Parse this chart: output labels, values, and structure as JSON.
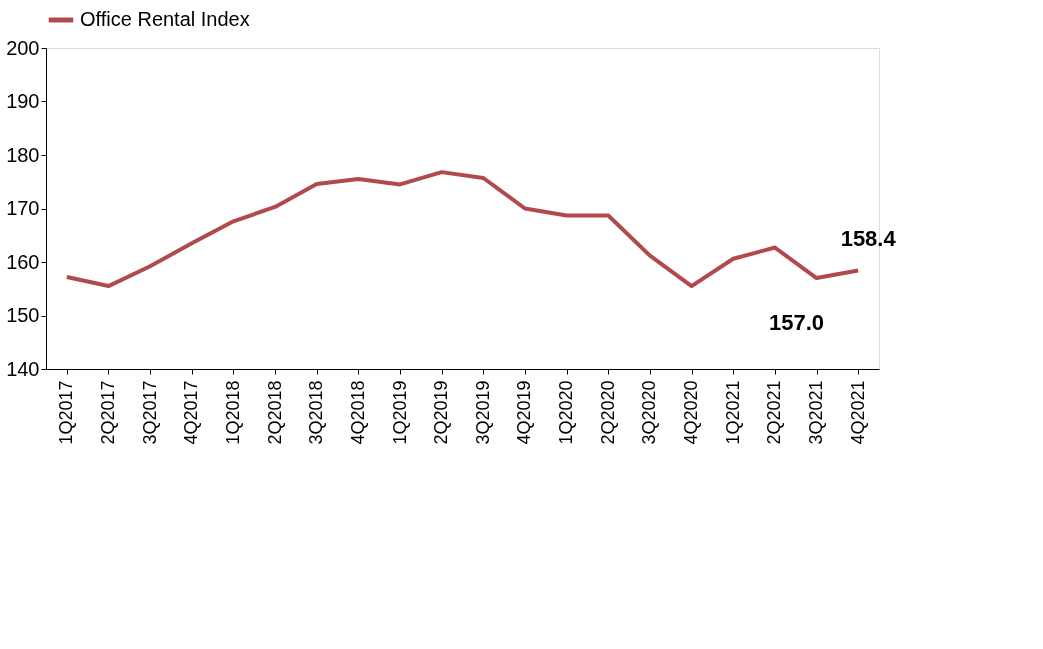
{
  "chart_data": {
    "type": "line",
    "categories": [
      "1Q2017",
      "2Q2017",
      "3Q2017",
      "4Q2017",
      "1Q2018",
      "2Q2018",
      "3Q2018",
      "4Q2018",
      "1Q2019",
      "2Q2019",
      "3Q2019",
      "4Q2019",
      "1Q2020",
      "2Q2020",
      "3Q2020",
      "4Q2020",
      "1Q2021",
      "2Q2021",
      "3Q2021",
      "4Q2021"
    ],
    "series": [
      {
        "name": "Office Rental Index",
        "color": "#b04a4c",
        "values": [
          157.2,
          155.5,
          159.2,
          163.5,
          167.6,
          170.3,
          174.6,
          175.5,
          174.5,
          176.8,
          175.7,
          170.0,
          168.7,
          168.7,
          161.2,
          155.5,
          160.6,
          162.7,
          157.0,
          158.4
        ],
        "value_labels": [
          null,
          null,
          null,
          null,
          null,
          null,
          null,
          null,
          null,
          null,
          null,
          null,
          null,
          null,
          null,
          null,
          null,
          null,
          "157.0",
          "158.4"
        ]
      }
    ],
    "ylim": [
      140,
      200
    ],
    "yticks": [
      140,
      150,
      160,
      170,
      180,
      190,
      200
    ],
    "grid": false,
    "legend": "top",
    "marker": "none",
    "line_style": "solid"
  }
}
